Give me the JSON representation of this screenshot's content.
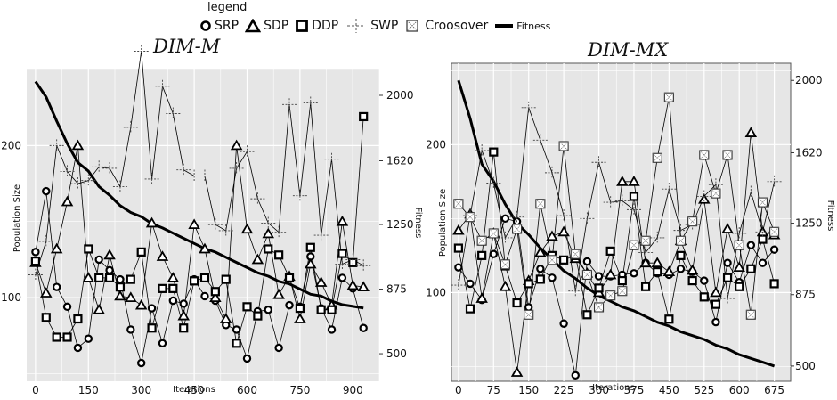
{
  "legend": {
    "title": "legend",
    "items": [
      {
        "label": "SRP",
        "marker": "circle"
      },
      {
        "label": "SDP",
        "marker": "triangle"
      },
      {
        "label": "DDP",
        "marker": "square"
      },
      {
        "label": "SWP",
        "marker": "star"
      },
      {
        "label": "Croosover",
        "marker": "crossbox"
      },
      {
        "label": "Fitness",
        "marker": "line"
      }
    ]
  },
  "colors": {
    "panel_bg": "#e6e6e6",
    "grid": "#ffffff",
    "series": "#000000",
    "panel_border": "#555555"
  },
  "chart_data": [
    {
      "type": "line",
      "title": "DIM-M",
      "xlabel": "Iterations",
      "ylabel": "Population Size",
      "y2label": "Fitness",
      "xlim": [
        -25,
        975
      ],
      "ylim": [
        45,
        250
      ],
      "y2lim": [
        340,
        2150
      ],
      "xticks": [
        0,
        150,
        300,
        450,
        600,
        750,
        900
      ],
      "yticks": [
        100,
        200
      ],
      "y2ticks": [
        500,
        875,
        1250,
        1620,
        2000
      ],
      "grid": true,
      "legend_position": "top",
      "series": [
        {
          "name": "SRP",
          "marker": "circle",
          "x": [
            0,
            30,
            60,
            90,
            120,
            150,
            180,
            210,
            240,
            270,
            300,
            330,
            360,
            390,
            420,
            450,
            480,
            510,
            540,
            570,
            600,
            630,
            660,
            690,
            720,
            750,
            780,
            810,
            840,
            870,
            900,
            930
          ],
          "y": [
            130,
            170,
            107,
            94,
            67,
            73,
            125,
            118,
            112,
            79,
            57,
            93,
            70,
            98,
            96,
            112,
            101,
            98,
            82,
            79,
            60,
            91,
            92,
            67,
            95,
            94,
            127,
            93,
            79,
            113,
            106,
            80
          ]
        },
        {
          "name": "SDP",
          "marker": "triangle",
          "x": [
            0,
            30,
            60,
            90,
            120,
            150,
            180,
            210,
            240,
            270,
            300,
            330,
            360,
            390,
            420,
            450,
            480,
            510,
            540,
            570,
            600,
            630,
            660,
            690,
            720,
            750,
            780,
            810,
            840,
            870,
            900,
            930
          ],
          "y": [
            123,
            103,
            132,
            163,
            200,
            113,
            92,
            128,
            101,
            100,
            95,
            149,
            127,
            113,
            88,
            148,
            132,
            100,
            86,
            200,
            145,
            125,
            142,
            102,
            114,
            86,
            122,
            110,
            95,
            150,
            108,
            107
          ]
        },
        {
          "name": "DDP",
          "marker": "square",
          "x": [
            0,
            30,
            60,
            90,
            120,
            150,
            180,
            210,
            240,
            270,
            300,
            330,
            360,
            390,
            420,
            450,
            480,
            510,
            540,
            570,
            600,
            630,
            660,
            690,
            720,
            750,
            780,
            810,
            840,
            870,
            900,
            930
          ],
          "y": [
            124,
            87,
            74,
            74,
            86,
            132,
            113,
            113,
            107,
            112,
            130,
            80,
            106,
            106,
            80,
            111,
            113,
            104,
            112,
            70,
            94,
            88,
            132,
            128,
            113,
            93,
            133,
            92,
            92,
            129,
            123,
            219
          ]
        },
        {
          "name": "SWP",
          "marker": "star",
          "x": [
            0,
            30,
            60,
            90,
            120,
            150,
            180,
            210,
            240,
            270,
            300,
            330,
            360,
            390,
            420,
            450,
            480,
            510,
            540,
            570,
            600,
            630,
            660,
            690,
            720,
            750,
            780,
            810,
            840,
            870,
            900,
            930
          ],
          "y": [
            115,
            137,
            200,
            183,
            175,
            177,
            186,
            185,
            173,
            212,
            262,
            178,
            239,
            221,
            184,
            180,
            180,
            148,
            144,
            185,
            196,
            165,
            149,
            143,
            227,
            167,
            228,
            141,
            191,
            122,
            125,
            121
          ]
        },
        {
          "name": "Fitness",
          "marker": "none",
          "x": [
            0,
            30,
            60,
            90,
            120,
            150,
            180,
            210,
            240,
            270,
            300,
            330,
            360,
            390,
            420,
            450,
            480,
            510,
            540,
            570,
            600,
            630,
            660,
            690,
            720,
            750,
            780,
            810,
            840,
            870,
            900,
            930
          ],
          "y": [
            2080,
            1990,
            1850,
            1720,
            1610,
            1560,
            1470,
            1420,
            1360,
            1320,
            1295,
            1255,
            1230,
            1200,
            1170,
            1140,
            1110,
            1090,
            1060,
            1030,
            1000,
            970,
            950,
            920,
            905,
            875,
            845,
            835,
            805,
            785,
            775,
            765
          ]
        }
      ]
    },
    {
      "type": "line",
      "title": "DIM-MX",
      "xlabel": "Iterations",
      "ylabel": "Population Size",
      "y2label": "Fitness",
      "xlim": [
        -15,
        710
      ],
      "ylim": [
        40,
        255
      ],
      "y2lim": [
        420,
        2090
      ],
      "xticks": [
        0,
        75,
        150,
        225,
        300,
        375,
        450,
        525,
        600,
        675
      ],
      "yticks": [
        100,
        200
      ],
      "y2ticks": [
        500,
        875,
        1250,
        1620,
        2000
      ],
      "grid": true,
      "legend_position": "top",
      "series": [
        {
          "name": "SRP",
          "marker": "circle",
          "x": [
            0,
            25,
            50,
            75,
            100,
            125,
            150,
            175,
            200,
            225,
            250,
            275,
            300,
            325,
            350,
            375,
            400,
            425,
            450,
            475,
            500,
            525,
            550,
            575,
            600,
            625,
            650,
            675
          ],
          "y": [
            117,
            106,
            95,
            126,
            150,
            148,
            90,
            116,
            110,
            79,
            44,
            121,
            111,
            111,
            112,
            113,
            120,
            113,
            112,
            116,
            114,
            108,
            80,
            120,
            107,
            132,
            120,
            129
          ]
        },
        {
          "name": "SDP",
          "marker": "triangle",
          "x": [
            0,
            25,
            50,
            75,
            100,
            125,
            150,
            175,
            200,
            225,
            250,
            275,
            300,
            325,
            350,
            375,
            400,
            425,
            450,
            475,
            500,
            525,
            550,
            575,
            600,
            625,
            650,
            675
          ],
          "y": [
            142,
            153,
            96,
            140,
            104,
            46,
            108,
            127,
            138,
            141,
            123,
            113,
            100,
            112,
            175,
            175,
            120,
            120,
            114,
            135,
            115,
            163,
            100,
            143,
            117,
            208,
            141,
            139
          ]
        },
        {
          "name": "DDP",
          "marker": "square",
          "x": [
            0,
            25,
            50,
            75,
            100,
            125,
            150,
            175,
            200,
            225,
            250,
            275,
            300,
            325,
            350,
            375,
            400,
            425,
            450,
            475,
            500,
            525,
            550,
            575,
            600,
            625,
            650,
            675
          ],
          "y": [
            130,
            89,
            125,
            195,
            118,
            93,
            106,
            109,
            125,
            122,
            125,
            85,
            103,
            128,
            108,
            165,
            104,
            114,
            82,
            125,
            108,
            97,
            92,
            110,
            104,
            116,
            136,
            106
          ]
        },
        {
          "name": "SWP",
          "marker": "star",
          "x": [
            0,
            25,
            50,
            75,
            100,
            125,
            150,
            175,
            200,
            225,
            250,
            275,
            300,
            325,
            350,
            375,
            400,
            425,
            450,
            475,
            500,
            525,
            550,
            575,
            600,
            625,
            650,
            675
          ],
          "y": [
            105,
            152,
            196,
            174,
            137,
            151,
            225,
            203,
            181,
            152,
            101,
            150,
            188,
            161,
            162,
            156,
            127,
            137,
            170,
            142,
            146,
            165,
            173,
            96,
            140,
            168,
            141,
            175
          ]
        },
        {
          "name": "Croosover",
          "marker": "crossbox",
          "x": [
            0,
            25,
            50,
            75,
            100,
            125,
            150,
            175,
            200,
            225,
            250,
            275,
            300,
            325,
            350,
            375,
            400,
            425,
            450,
            475,
            500,
            525,
            550,
            575,
            600,
            625,
            650,
            675
          ],
          "y": [
            160,
            151,
            135,
            140,
            119,
            143,
            85,
            160,
            122,
            199,
            126,
            112,
            90,
            98,
            101,
            132,
            135,
            191,
            232,
            135,
            148,
            193,
            167,
            193,
            132,
            85,
            161,
            141
          ]
        },
        {
          "name": "Fitness",
          "marker": "none",
          "x": [
            0,
            25,
            50,
            75,
            100,
            125,
            150,
            175,
            200,
            225,
            250,
            275,
            300,
            325,
            350,
            375,
            400,
            425,
            450,
            475,
            500,
            525,
            550,
            575,
            600,
            625,
            650,
            675
          ],
          "y": [
            2000,
            1800,
            1560,
            1470,
            1350,
            1250,
            1190,
            1120,
            1060,
            1000,
            960,
            910,
            870,
            840,
            810,
            790,
            760,
            730,
            710,
            680,
            660,
            640,
            610,
            590,
            560,
            540,
            520,
            500
          ]
        }
      ]
    }
  ]
}
